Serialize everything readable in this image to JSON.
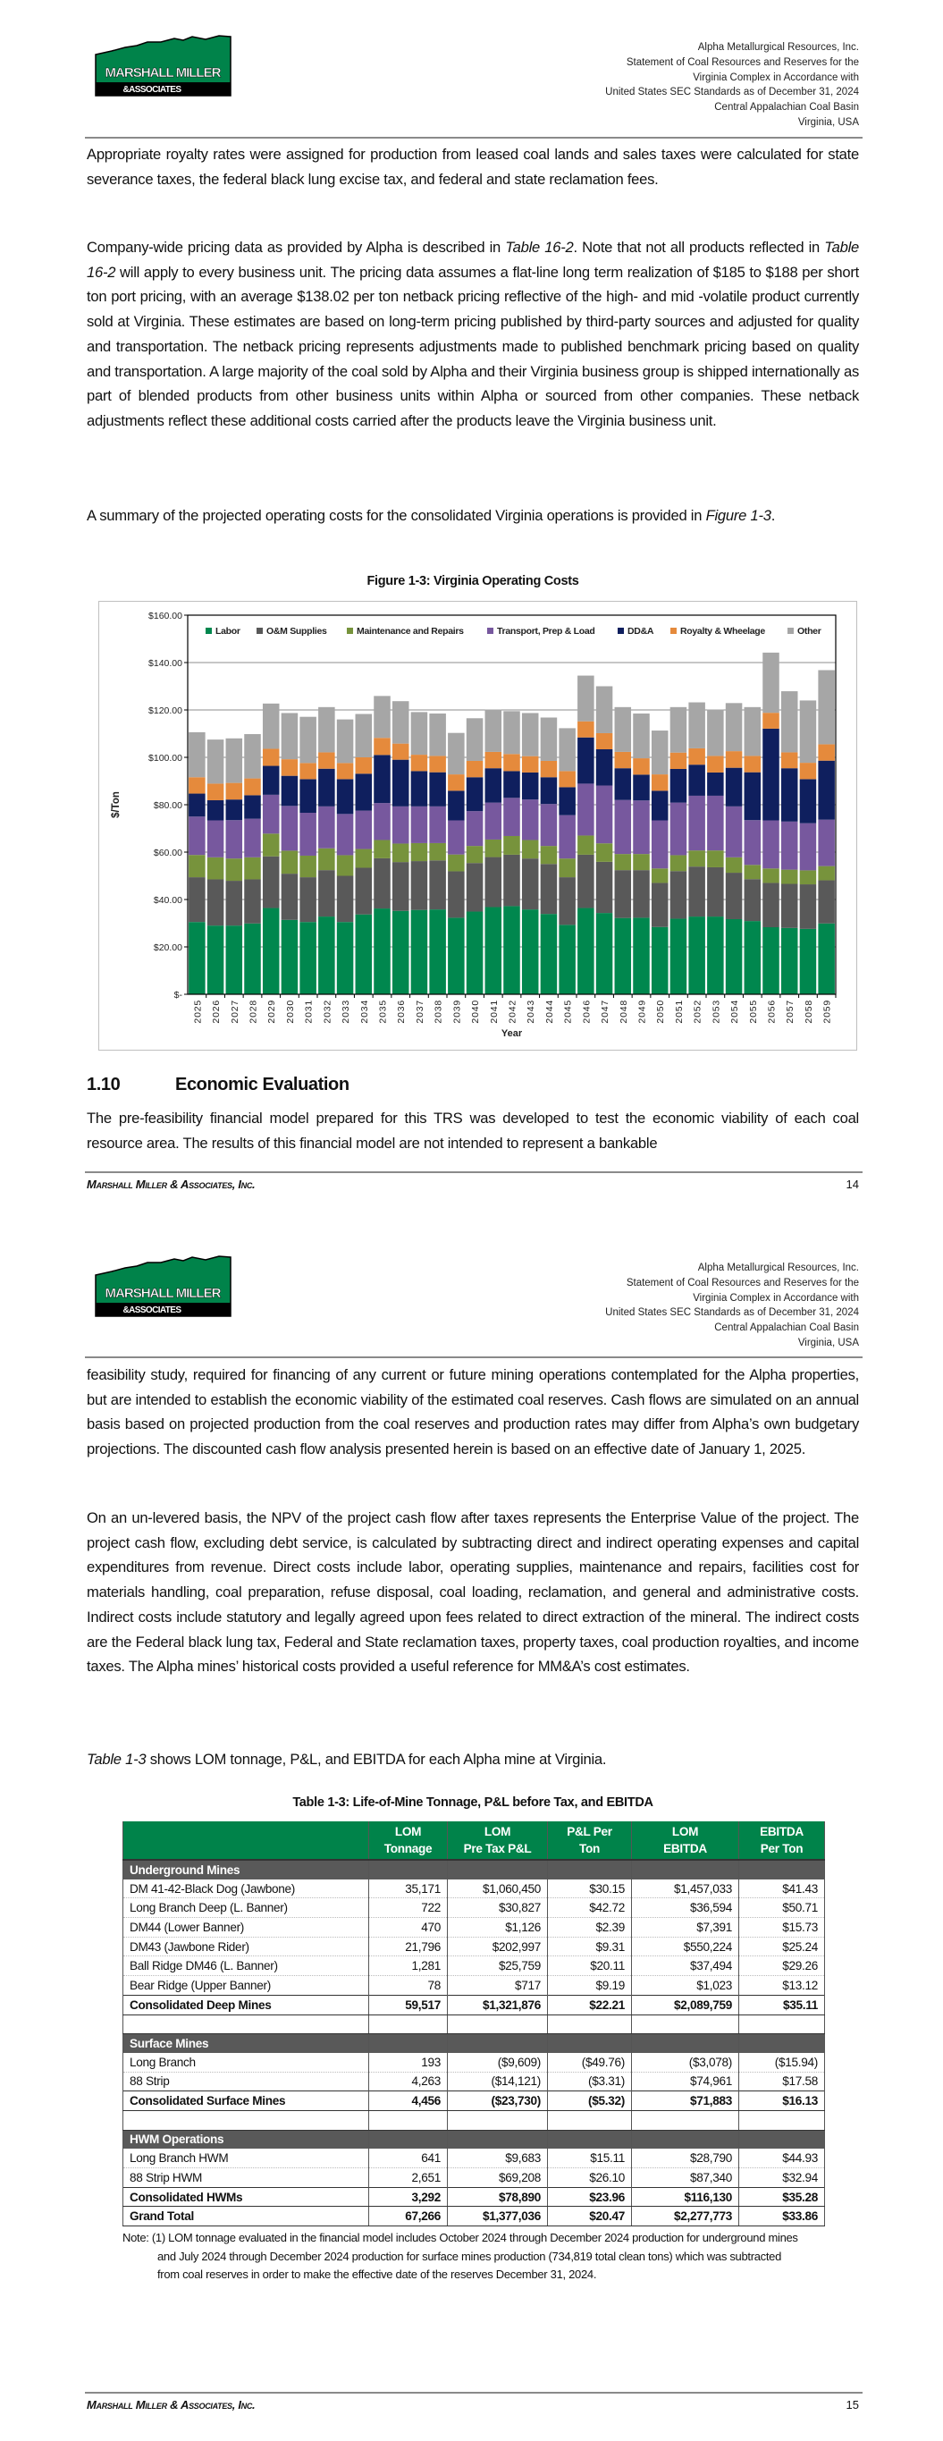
{
  "header": {
    "logo_text": "MARSHALL MILLER",
    "logo_subtext": "&ASSOCIATES",
    "lines": [
      "Alpha Metallurgical Resources, Inc.",
      "Statement of Coal Resources and Reserves for the",
      "Virginia Complex in Accordance with",
      "United States SEC Standards as of December 31, 2024",
      "Central Appalachian Coal Basin",
      "Virginia, USA"
    ]
  },
  "footer": {
    "company": "Marshall Miller & Associates, Inc."
  },
  "page1": {
    "page_number": "14",
    "p1": "Appropriate royalty rates were assigned for production from leased coal lands and sales taxes were calculated for state severance taxes, the federal black lung excise tax, and federal and state reclamation fees.",
    "p2_a": "Company-wide pricing data as provided by Alpha is described in ",
    "p2_ref1": "Table 16-2",
    "p2_b": ".  Note that not all products reflected in ",
    "p2_ref2": "Table 16-2",
    "p2_c": " will apply to every business unit.  The pricing data assumes a flat-line long term realization of $185 to $188 per short ton port pricing, with an average $138.02 per ton netback pricing reflective of the high- and mid -volatile product currently sold at Virginia.  These estimates are based on long-term pricing published by third-party sources and adjusted for quality and transportation.  The netback pricing represents adjustments made to published benchmark pricing based on quality and transportation.  A large majority of the coal sold by Alpha and their Virginia business group is shipped internationally as part of blended products from other business units within Alpha or sourced from other companies.  These netback adjustments reflect these additional costs carried after the products leave the Virginia business unit.",
    "p3_a": "A summary of the projected operating costs for the consolidated Virginia operations is provided in ",
    "p3_ref": "Figure 1-3",
    "p3_b": ".",
    "figure_title": "Figure 1-3:  Virginia Operating Costs",
    "section_number": "1.10",
    "section_title": "Economic Evaluation",
    "p4": "The pre-feasibility financial model prepared for this TRS was developed to test the economic viability of each coal resource area.  The results of this financial model are not intended to represent a bankable"
  },
  "chart_data": {
    "type": "bar",
    "stacked": true,
    "title": "Figure 1-3:  Virginia Operating Costs",
    "xlabel": "Year",
    "ylabel": "$/Ton",
    "ylim": [
      0,
      160
    ],
    "yticks": [
      0,
      20,
      40,
      60,
      80,
      100,
      120,
      140,
      160
    ],
    "ytick_labels": [
      "$-",
      "$20.00",
      "$40.00",
      "$60.00",
      "$80.00",
      "$100.00",
      "$120.00",
      "$140.00",
      "$160.00"
    ],
    "grid": true,
    "legend": "top",
    "categories": [
      "2025",
      "2026",
      "2027",
      "2028",
      "2029",
      "2030",
      "2031",
      "2032",
      "2033",
      "2034",
      "2035",
      "2036",
      "2037",
      "2038",
      "2039",
      "2040",
      "2041",
      "2042",
      "2043",
      "2044",
      "2045",
      "2046",
      "2047",
      "2048",
      "2049",
      "2050",
      "2051",
      "2052",
      "2053",
      "2054",
      "2055",
      "2056",
      "2057",
      "2058",
      "2059"
    ],
    "series": [
      {
        "name": "Labor",
        "color": "#00874e",
        "values": [
          30.5,
          29.0,
          29.0,
          29.9,
          36.4,
          31.4,
          30.5,
          32.8,
          30.5,
          33.7,
          36.2,
          35.2,
          35.6,
          35.8,
          32.3,
          34.9,
          36.8,
          37.2,
          35.8,
          33.9,
          29.3,
          36.4,
          34.3,
          32.2,
          32.3,
          28.4,
          31.9,
          32.8,
          32.8,
          31.7,
          30.9,
          28.3,
          28.0,
          27.6,
          29.9
        ]
      },
      {
        "name": "O&M Supplies",
        "color": "#595959",
        "values": [
          18.9,
          19.5,
          18.9,
          18.6,
          21.8,
          19.5,
          18.9,
          19.6,
          19.5,
          19.7,
          21.2,
          20.6,
          20.6,
          20.7,
          19.6,
          20.5,
          21.1,
          21.7,
          21.5,
          21.1,
          20.1,
          22.5,
          21.6,
          20.2,
          20.1,
          18.6,
          20.1,
          21.1,
          20.8,
          19.6,
          17.7,
          18.7,
          18.6,
          18.8,
          18.2
        ]
      },
      {
        "name": "Maintenance and Repairs",
        "color": "#77933c",
        "values": [
          9.4,
          9.3,
          9.4,
          9.3,
          9.6,
          9.7,
          9.1,
          9.2,
          8.7,
          7.9,
          7.7,
          7.8,
          7.6,
          7.3,
          7.1,
          7.2,
          7.4,
          7.9,
          7.8,
          7.6,
          7.9,
          8.1,
          7.8,
          6.8,
          6.8,
          6.1,
          6.7,
          6.8,
          7.1,
          6.5,
          6.0,
          6.1,
          6.0,
          5.9,
          6.0
        ]
      },
      {
        "name": "Transport, Prep & Load",
        "color": "#77589e",
        "values": [
          16.2,
          15.6,
          16.2,
          16.3,
          16.4,
          18.9,
          18.1,
          17.7,
          17.4,
          16.2,
          15.6,
          15.7,
          15.5,
          15.5,
          14.4,
          14.7,
          15.6,
          16.1,
          17.1,
          17.7,
          18.3,
          21.9,
          24.4,
          22.8,
          22.6,
          20.3,
          22.2,
          23.1,
          23.1,
          21.5,
          18.9,
          20.3,
          20.3,
          19.9,
          19.6
        ]
      },
      {
        "name": "DD&A",
        "color": "#0f1f5e",
        "values": [
          9.7,
          8.5,
          8.7,
          9.9,
          12.2,
          12.7,
          14.2,
          15.9,
          14.7,
          15.6,
          20.3,
          19.7,
          14.9,
          14.4,
          12.5,
          14.3,
          14.5,
          11.3,
          11.4,
          11.3,
          11.8,
          19.5,
          15.3,
          13.4,
          10.9,
          12.5,
          14.2,
          13.1,
          9.8,
          16.3,
          20.2,
          38.7,
          22.5,
          18.6,
          24.9
        ]
      },
      {
        "name": "Royalty & Wheelage",
        "color": "#e58a3c",
        "values": [
          6.9,
          7.0,
          7.0,
          7.1,
          7.2,
          7.0,
          6.8,
          6.9,
          6.8,
          6.9,
          7.2,
          6.8,
          6.9,
          6.9,
          6.9,
          6.9,
          6.9,
          7.2,
          6.9,
          6.9,
          6.8,
          6.8,
          6.8,
          6.9,
          6.9,
          6.9,
          6.9,
          6.9,
          7.0,
          7.0,
          6.9,
          6.7,
          6.7,
          6.9,
          6.9
        ]
      },
      {
        "name": "Other",
        "color": "#a6a6a6",
        "values": [
          19.0,
          18.6,
          18.8,
          18.7,
          19.1,
          19.5,
          19.5,
          19.1,
          18.4,
          18.3,
          17.7,
          17.9,
          18.0,
          17.9,
          17.5,
          18.0,
          17.9,
          18.1,
          18.2,
          18.3,
          18.1,
          19.3,
          19.8,
          18.9,
          18.9,
          18.5,
          19.2,
          19.4,
          19.6,
          20.3,
          20.6,
          25.4,
          25.8,
          26.3,
          31.3
        ]
      }
    ]
  },
  "page2": {
    "page_number": "15",
    "p1": "feasibility study, required for financing of any current or future mining operations contemplated for the Alpha properties, but are intended to establish the economic viability of the estimated coal reserves.  Cash flows are simulated on an annual basis based on projected production from the coal reserves and production rates may differ from Alpha’s own budgetary projections.  The discounted cash flow analysis presented herein is based on an effective date of January 1, 2025.",
    "p2": "On an un-levered basis, the NPV of the project cash flow after taxes represents the Enterprise Value of the project.  The project cash flow, excluding debt service, is calculated by subtracting direct and indirect operating expenses and capital expenditures from revenue.   Direct costs include labor, operating supplies, maintenance and repairs, facilities cost for materials handling, coal preparation, refuse disposal, coal loading, reclamation, and general and administrative costs.   Indirect costs include statutory and legally agreed upon fees related to direct extraction of the mineral.  The indirect costs are the Federal black lung tax, Federal and State reclamation taxes, property taxes, coal production royalties, and income taxes.  The Alpha mines’ historical costs provided a useful reference for MM&A’s cost estimates.",
    "p3_ref": "Table 1-3",
    "p3_b": " shows LOM tonnage, P&L, and EBITDA for each Alpha mine at Virginia.",
    "table_title": "Table 1-3:  Life-of-Mine Tonnage, P&L before Tax, and EBITDA",
    "table": {
      "columns": [
        "",
        "LOM\nTonnage",
        "LOM\nPre Tax P&L",
        "P&L Per\nTon",
        "LOM\nEBITDA",
        "EBITDA\nPer Ton"
      ],
      "rows": [
        {
          "type": "sec",
          "cells": [
            "Underground Mines",
            "",
            "",
            "",
            "",
            ""
          ]
        },
        {
          "type": "row",
          "cells": [
            "DM 41-42-Black Dog (Jawbone)",
            "35,171",
            "$1,060,450",
            "$30.15",
            "$1,457,033",
            "$41.43"
          ]
        },
        {
          "type": "row",
          "cells": [
            "Long Branch Deep (L. Banner)",
            "722",
            "$30,827",
            "$42.72",
            "$36,594",
            "$50.71"
          ]
        },
        {
          "type": "row",
          "cells": [
            "DM44 (Lower Banner)",
            "470",
            "$1,126",
            "$2.39",
            "$7,391",
            "$15.73"
          ]
        },
        {
          "type": "row",
          "cells": [
            "DM43 (Jawbone Rider)",
            "21,796",
            "$202,997",
            "$9.31",
            "$550,224",
            "$25.24"
          ]
        },
        {
          "type": "row",
          "cells": [
            "Ball Ridge DM46 (L. Banner)",
            "1,281",
            "$25,759",
            "$20.11",
            "$37,494",
            "$29.26"
          ]
        },
        {
          "type": "row",
          "cells": [
            "Bear Ridge (Upper Banner)",
            "78",
            "$717",
            "$9.19",
            "$1,023",
            "$13.12"
          ]
        },
        {
          "type": "tot",
          "cells": [
            "Consolidated Deep Mines",
            "59,517",
            "$1,321,876",
            "$22.21",
            "$2,089,759",
            "$35.11"
          ]
        },
        {
          "type": "blank",
          "cells": [
            "",
            "",
            "",
            "",
            "",
            ""
          ]
        },
        {
          "type": "sec",
          "cells": [
            "Surface Mines",
            "",
            "",
            "",
            "",
            ""
          ]
        },
        {
          "type": "row",
          "cells": [
            "Long Branch",
            "193",
            "($9,609)",
            "($49.76)",
            "($3,078)",
            "($15.94)"
          ]
        },
        {
          "type": "row",
          "cells": [
            "88 Strip",
            "4,263",
            "($14,121)",
            "($3.31)",
            "$74,961",
            "$17.58"
          ]
        },
        {
          "type": "tot",
          "cells": [
            "Consolidated Surface Mines",
            "4,456",
            "($23,730)",
            "($5.32)",
            "$71,883",
            "$16.13"
          ]
        },
        {
          "type": "blank",
          "cells": [
            "",
            "",
            "",
            "",
            "",
            ""
          ]
        },
        {
          "type": "sec",
          "cells": [
            "HWM Operations",
            "",
            "",
            "",
            "",
            ""
          ]
        },
        {
          "type": "row",
          "cells": [
            "Long Branch HWM",
            "641",
            "$9,683",
            "$15.11",
            "$28,790",
            "$44.93"
          ]
        },
        {
          "type": "row",
          "cells": [
            "88 Strip HWM",
            "2,651",
            "$69,208",
            "$26.10",
            "$87,340",
            "$32.94"
          ]
        },
        {
          "type": "tot",
          "cells": [
            "Consolidated HWMs",
            "3,292",
            "$78,890",
            "$23.96",
            "$116,130",
            "$35.28"
          ]
        },
        {
          "type": "tot",
          "cells": [
            "Grand Total",
            "67,266",
            "$1,377,036",
            "$20.47",
            "$2,277,773",
            "$33.86"
          ]
        }
      ]
    },
    "note": "Note:  (1) LOM tonnage evaluated in the financial model includes October 2024 through December 2024 production for underground mines and July 2024 through December 2024 production for surface mines production (734,819 total clean tons) which was subtracted from coal reserves in order to make the effective date of the reserves December 31, 2024."
  }
}
